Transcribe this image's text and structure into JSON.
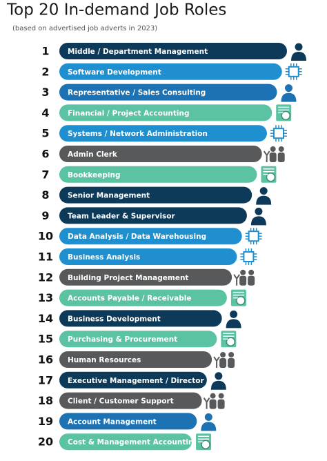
{
  "header": {
    "title": "Top 20 In-demand Job Roles",
    "subtitle": "(based on advertised job adverts in 2023)"
  },
  "items": [
    {
      "rank": 1,
      "label": "Middle / Department Management",
      "color": "#0e3a5a"
    },
    {
      "rank": 2,
      "label": "Software Development",
      "color": "#1f8fd0"
    },
    {
      "rank": 3,
      "label": "Representative / Sales Consulting",
      "color": "#1c72b3"
    },
    {
      "rank": 4,
      "label": "Financial / Project Accounting",
      "color": "#5cc2a4"
    },
    {
      "rank": 5,
      "label": "Systems / Network Administration",
      "color": "#1f8fd0"
    },
    {
      "rank": 6,
      "label": "Admin Clerk",
      "color": "#58595b"
    },
    {
      "rank": 7,
      "label": "Bookkeeping",
      "color": "#5cc2a4"
    },
    {
      "rank": 8,
      "label": "Senior Management",
      "color": "#0e3a5a"
    },
    {
      "rank": 9,
      "label": "Team Leader & Supervisor",
      "color": "#0e3a5a"
    },
    {
      "rank": 10,
      "label": "Data Analysis / Data Warehousing",
      "color": "#1f8fd0"
    },
    {
      "rank": 11,
      "label": "Business Analysis",
      "color": "#1f8fd0"
    },
    {
      "rank": 12,
      "label": "Building Project Management",
      "color": "#58595b"
    },
    {
      "rank": 13,
      "label": "Accounts Payable / Receivable",
      "color": "#5cc2a4"
    },
    {
      "rank": 14,
      "label": "Business Development",
      "color": "#0e3a5a"
    },
    {
      "rank": 15,
      "label": "Purchasing & Procurement",
      "color": "#5cc2a4"
    },
    {
      "rank": 16,
      "label": "Human Resources",
      "color": "#58595b"
    },
    {
      "rank": 17,
      "label": "Executive Management / Director",
      "color": "#0e3a5a"
    },
    {
      "rank": 18,
      "label": "Client / Customer Support",
      "color": "#58595b"
    },
    {
      "rank": 19,
      "label": "Account Management",
      "color": "#1c72b3"
    },
    {
      "rank": 20,
      "label": "Cost & Management Accounting",
      "color": "#5cc2a4"
    }
  ]
}
